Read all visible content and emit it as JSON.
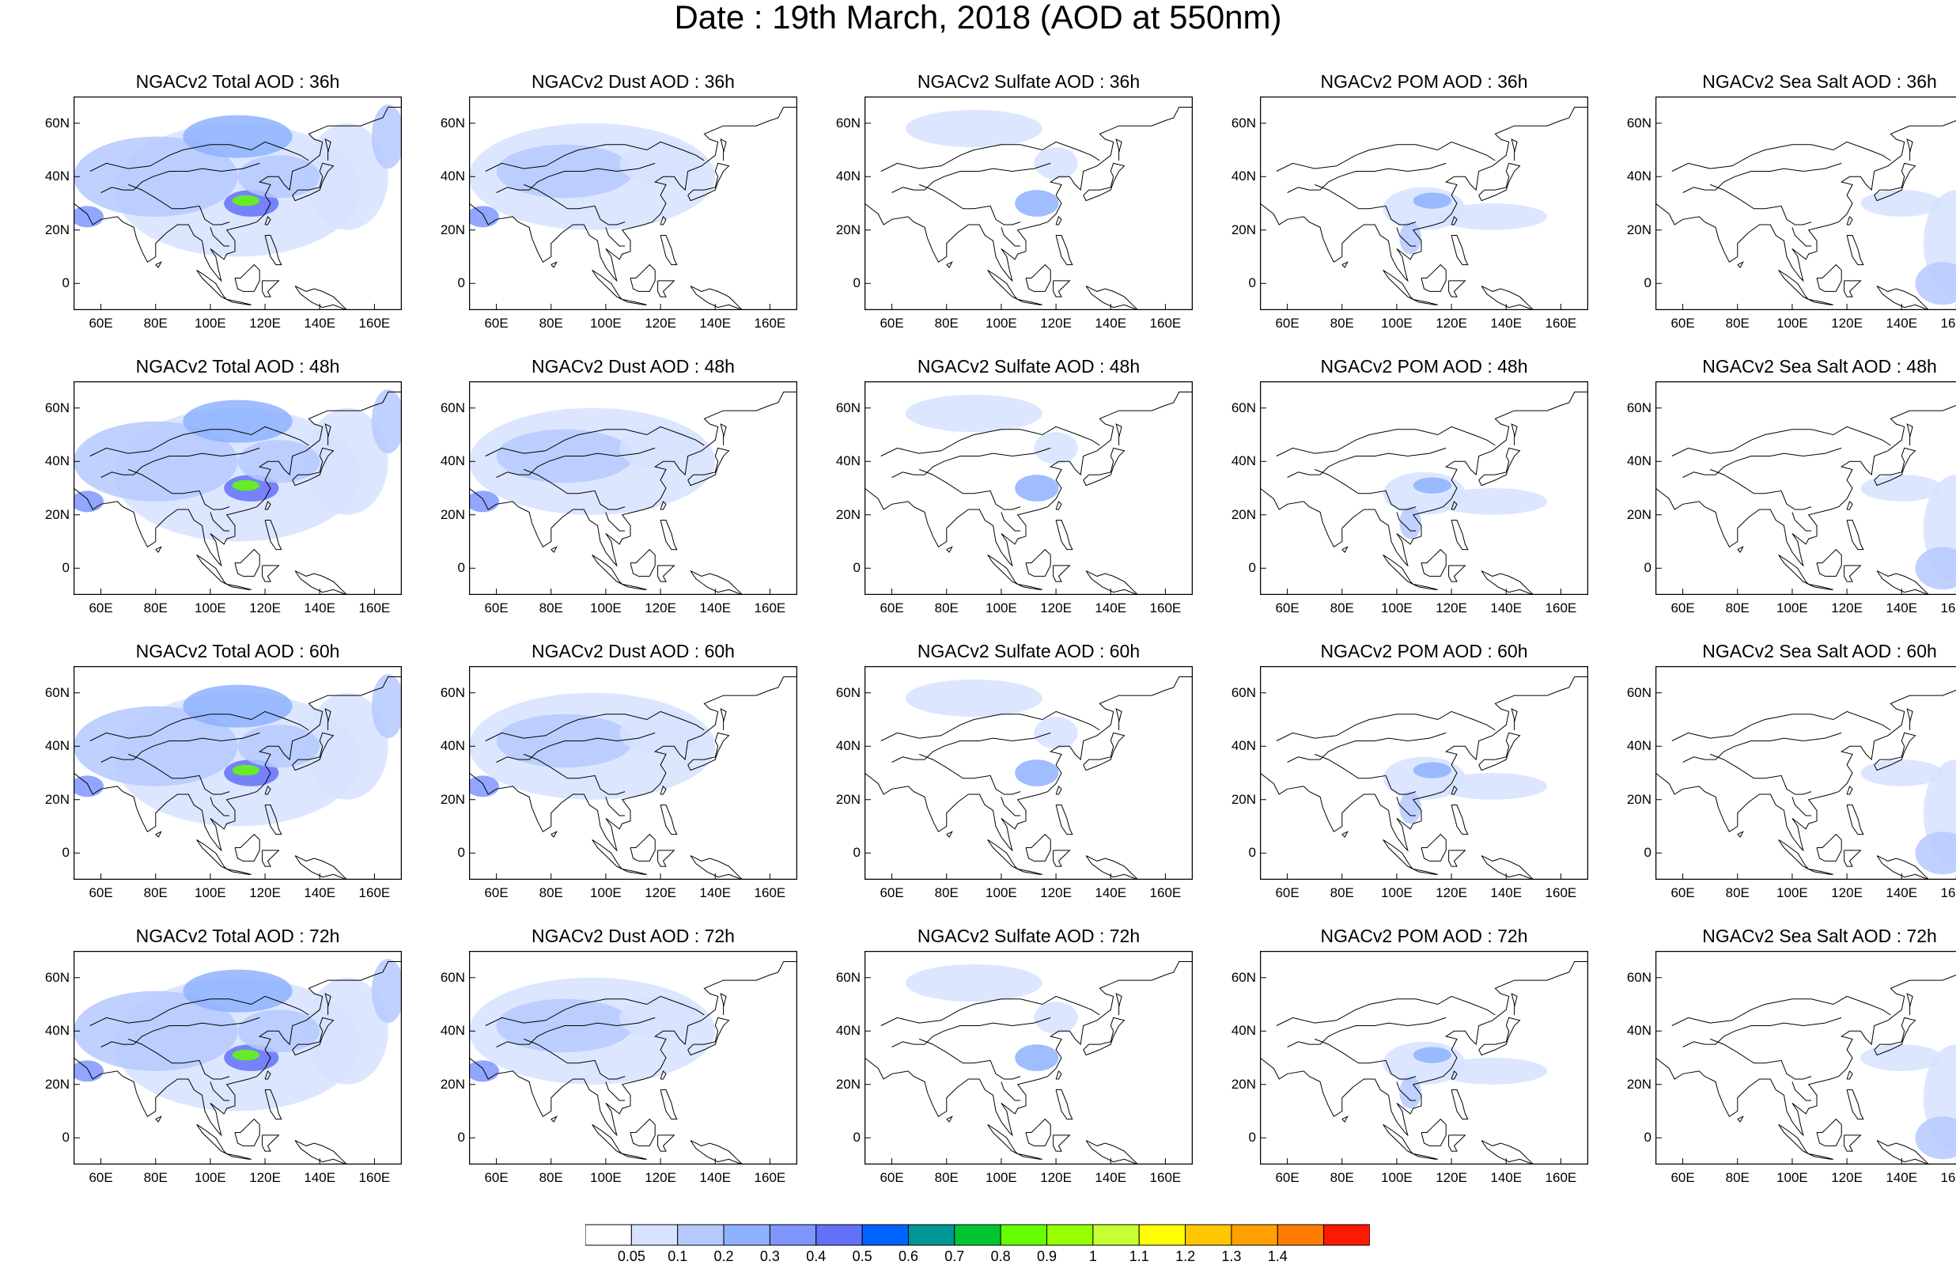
{
  "title": "Date : 19th March, 2018 (AOD at 550nm)",
  "lat_ticks": [
    "60N",
    "40N",
    "20N",
    "0"
  ],
  "lon_ticks": [
    "60E",
    "80E",
    "100E",
    "120E",
    "140E",
    "160E"
  ],
  "panels": [
    [
      "NGACv2 Total AOD : 36h",
      "NGACv2 Dust AOD : 36h",
      "NGACv2 Sulfate AOD : 36h",
      "NGACv2 POM AOD : 36h",
      "NGACv2 Sea Salt AOD : 36h"
    ],
    [
      "NGACv2 Total AOD : 48h",
      "NGACv2 Dust AOD : 48h",
      "NGACv2 Sulfate AOD : 48h",
      "NGACv2 POM AOD : 48h",
      "NGACv2 Sea Salt AOD : 48h"
    ],
    [
      "NGACv2 Total AOD : 60h",
      "NGACv2 Dust AOD : 60h",
      "NGACv2 Sulfate AOD : 60h",
      "NGACv2 POM AOD : 60h",
      "NGACv2 Sea Salt AOD : 60h"
    ],
    [
      "NGACv2 Total AOD : 72h",
      "NGACv2 Dust AOD : 72h",
      "NGACv2 Sulfate AOD : 72h",
      "NGACv2 POM AOD : 72h",
      "NGACv2 Sea Salt  AOD : 72h"
    ]
  ],
  "colorbar": {
    "labels": [
      "0.05",
      "0.1",
      "0.2",
      "0.3",
      "0.4",
      "0.5",
      "0.6",
      "0.7",
      "0.8",
      "0.9",
      "1",
      "1.1",
      "1.2",
      "1.3",
      "1.4"
    ],
    "colors": [
      "#ffffff",
      "#d6e2ff",
      "#b5c9ff",
      "#8eb2ff",
      "#7f96ff",
      "#6370f8",
      "#0063ff",
      "#009696",
      "#00c633",
      "#63ff00",
      "#96ff00",
      "#c6ff33",
      "#ffff00",
      "#ffc600",
      "#ffa000",
      "#ff7c00",
      "#ff1900"
    ]
  }
}
